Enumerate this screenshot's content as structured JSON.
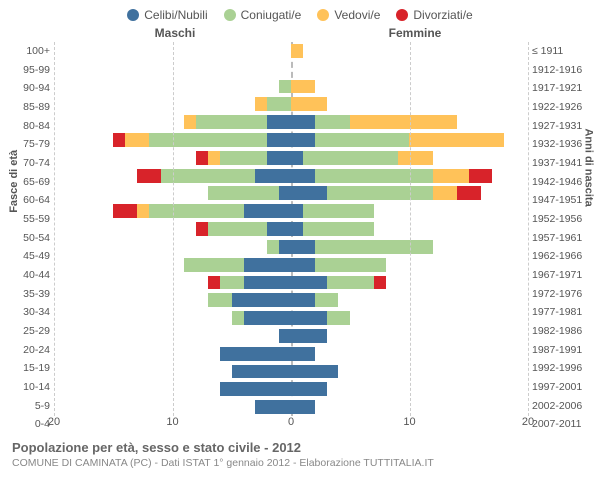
{
  "legend": {
    "items": [
      {
        "label": "Celibi/Nubili",
        "color": "#40719e"
      },
      {
        "label": "Coniugati/e",
        "color": "#aad194"
      },
      {
        "label": "Vedovi/e",
        "color": "#ffc259"
      },
      {
        "label": "Divorziati/e",
        "color": "#d8232a"
      }
    ]
  },
  "gender_labels": {
    "left": "Maschi",
    "right": "Femmine"
  },
  "axis_titles": {
    "left": "Fasce di età",
    "right": "Anni di nascita"
  },
  "y_left_labels": [
    "100+",
    "95-99",
    "90-94",
    "85-89",
    "80-84",
    "75-79",
    "70-74",
    "65-69",
    "60-64",
    "55-59",
    "50-54",
    "45-49",
    "40-44",
    "35-39",
    "30-34",
    "25-29",
    "20-24",
    "15-19",
    "10-14",
    "5-9",
    "0-4"
  ],
  "y_right_labels": [
    "≤ 1911",
    "1912-1916",
    "1917-1921",
    "1922-1926",
    "1927-1931",
    "1932-1936",
    "1937-1941",
    "1942-1946",
    "1947-1951",
    "1952-1956",
    "1957-1961",
    "1962-1966",
    "1967-1971",
    "1972-1976",
    "1977-1981",
    "1982-1986",
    "1987-1991",
    "1992-1996",
    "1997-2001",
    "2002-2006",
    "2007-2011"
  ],
  "x_axis": {
    "max": 20,
    "ticks": [
      20,
      10,
      0,
      10,
      20
    ]
  },
  "colors": {
    "celibi": "#40719e",
    "coniugati": "#aad194",
    "vedovi": "#ffc259",
    "divorziati": "#d8232a",
    "grid": "#cccccc",
    "centerline": "#bbbbbb",
    "background": "#ffffff"
  },
  "rows": [
    {
      "age": "100+",
      "male": {
        "cel": 0,
        "con": 0,
        "ved": 0,
        "div": 0
      },
      "female": {
        "cel": 0,
        "con": 0,
        "ved": 1.0,
        "div": 0
      }
    },
    {
      "age": "95-99",
      "male": {
        "cel": 0,
        "con": 0,
        "ved": 0,
        "div": 0
      },
      "female": {
        "cel": 0,
        "con": 0,
        "ved": 0,
        "div": 0
      }
    },
    {
      "age": "90-94",
      "male": {
        "cel": 0,
        "con": 1.0,
        "ved": 0,
        "div": 0
      },
      "female": {
        "cel": 0,
        "con": 0,
        "ved": 2.0,
        "div": 0
      }
    },
    {
      "age": "85-89",
      "male": {
        "cel": 0,
        "con": 2.0,
        "ved": 1.0,
        "div": 0
      },
      "female": {
        "cel": 0,
        "con": 0,
        "ved": 3.0,
        "div": 0
      }
    },
    {
      "age": "80-84",
      "male": {
        "cel": 2.0,
        "con": 6.0,
        "ved": 1.0,
        "div": 0
      },
      "female": {
        "cel": 2.0,
        "con": 3.0,
        "ved": 9.0,
        "div": 0
      }
    },
    {
      "age": "75-79",
      "male": {
        "cel": 2.0,
        "con": 10.0,
        "ved": 2.0,
        "div": 1.0
      },
      "female": {
        "cel": 2.0,
        "con": 8.0,
        "ved": 8.0,
        "div": 0
      }
    },
    {
      "age": "70-74",
      "male": {
        "cel": 2.0,
        "con": 4.0,
        "ved": 1.0,
        "div": 1.0
      },
      "female": {
        "cel": 1.0,
        "con": 8.0,
        "ved": 3.0,
        "div": 0
      }
    },
    {
      "age": "65-69",
      "male": {
        "cel": 3.0,
        "con": 8.0,
        "ved": 0,
        "div": 2.0
      },
      "female": {
        "cel": 2.0,
        "con": 10.0,
        "ved": 3.0,
        "div": 2.0
      }
    },
    {
      "age": "60-64",
      "male": {
        "cel": 1.0,
        "con": 6.0,
        "ved": 0,
        "div": 0
      },
      "female": {
        "cel": 3.0,
        "con": 9.0,
        "ved": 2.0,
        "div": 2.0
      }
    },
    {
      "age": "55-59",
      "male": {
        "cel": 4.0,
        "con": 8.0,
        "ved": 1.0,
        "div": 2.0
      },
      "female": {
        "cel": 1.0,
        "con": 6.0,
        "ved": 0,
        "div": 0
      }
    },
    {
      "age": "50-54",
      "male": {
        "cel": 2.0,
        "con": 5.0,
        "ved": 0,
        "div": 1.0
      },
      "female": {
        "cel": 1.0,
        "con": 6.0,
        "ved": 0,
        "div": 0
      }
    },
    {
      "age": "45-49",
      "male": {
        "cel": 1.0,
        "con": 1.0,
        "ved": 0,
        "div": 0
      },
      "female": {
        "cel": 2.0,
        "con": 10.0,
        "ved": 0,
        "div": 0
      }
    },
    {
      "age": "40-44",
      "male": {
        "cel": 4.0,
        "con": 5.0,
        "ved": 0,
        "div": 0
      },
      "female": {
        "cel": 2.0,
        "con": 6.0,
        "ved": 0,
        "div": 0
      }
    },
    {
      "age": "35-39",
      "male": {
        "cel": 4.0,
        "con": 2.0,
        "ved": 0,
        "div": 1.0
      },
      "female": {
        "cel": 3.0,
        "con": 4.0,
        "ved": 0,
        "div": 1.0
      }
    },
    {
      "age": "30-34",
      "male": {
        "cel": 5.0,
        "con": 2.0,
        "ved": 0,
        "div": 0
      },
      "female": {
        "cel": 2.0,
        "con": 2.0,
        "ved": 0,
        "div": 0
      }
    },
    {
      "age": "25-29",
      "male": {
        "cel": 4.0,
        "con": 1.0,
        "ved": 0,
        "div": 0
      },
      "female": {
        "cel": 3.0,
        "con": 2.0,
        "ved": 0,
        "div": 0
      }
    },
    {
      "age": "20-24",
      "male": {
        "cel": 1.0,
        "con": 0,
        "ved": 0,
        "div": 0
      },
      "female": {
        "cel": 3.0,
        "con": 0,
        "ved": 0,
        "div": 0
      }
    },
    {
      "age": "15-19",
      "male": {
        "cel": 6.0,
        "con": 0,
        "ved": 0,
        "div": 0
      },
      "female": {
        "cel": 2.0,
        "con": 0,
        "ved": 0,
        "div": 0
      }
    },
    {
      "age": "10-14",
      "male": {
        "cel": 5.0,
        "con": 0,
        "ved": 0,
        "div": 0
      },
      "female": {
        "cel": 4.0,
        "con": 0,
        "ved": 0,
        "div": 0
      }
    },
    {
      "age": "5-9",
      "male": {
        "cel": 6.0,
        "con": 0,
        "ved": 0,
        "div": 0
      },
      "female": {
        "cel": 3.0,
        "con": 0,
        "ved": 0,
        "div": 0
      }
    },
    {
      "age": "0-4",
      "male": {
        "cel": 3.0,
        "con": 0,
        "ved": 0,
        "div": 0
      },
      "female": {
        "cel": 2.0,
        "con": 0,
        "ved": 0,
        "div": 0
      }
    }
  ],
  "footer": {
    "title": "Popolazione per età, sesso e stato civile - 2012",
    "subtitle": "COMUNE DI CAMINATA (PC) - Dati ISTAT 1° gennaio 2012 - Elaborazione TUTTITALIA.IT"
  }
}
